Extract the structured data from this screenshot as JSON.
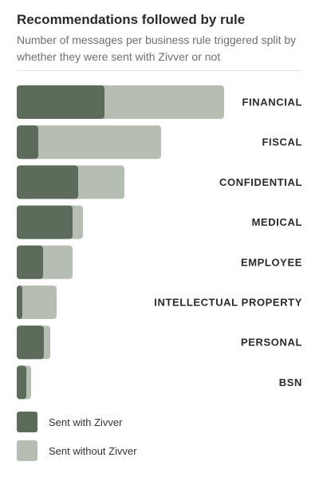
{
  "header": {
    "title": "Recommendations followed by rule",
    "subtitle": "Number of messages per business rule triggered split by whether they were sent with Zivver or not"
  },
  "colors": {
    "with_zivver": "#5d6b5b",
    "without_zivver": "#b6bdb3"
  },
  "legend": {
    "with_label": "Sent with Zivver",
    "without_label": "Sent without Zivver"
  },
  "chart_data": {
    "type": "bar",
    "orientation": "horizontal",
    "stacked": true,
    "title": "Recommendations followed by rule",
    "subtitle": "Number of messages per business rule triggered split by whether they were sent with Zivver or not",
    "categories": [
      "FINANCIAL",
      "FISCAL",
      "CONFIDENTIAL",
      "MEDICAL",
      "EMPLOYEE",
      "INTELLECTUAL PROPERTY",
      "PERSONAL",
      "BSN"
    ],
    "series": [
      {
        "name": "Sent with Zivver",
        "values": [
          110,
          27,
          77,
          70,
          33,
          7,
          34,
          12
        ]
      },
      {
        "name": "Sent without Zivver",
        "values": [
          150,
          154,
          58,
          13,
          37,
          43,
          8,
          6
        ]
      }
    ],
    "legend_position": "bottom-left",
    "grid": false,
    "axis_visible": false
  }
}
